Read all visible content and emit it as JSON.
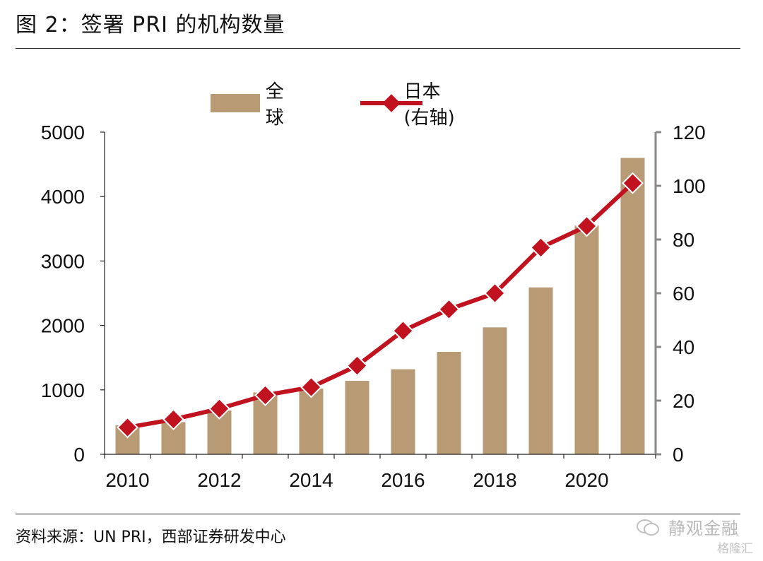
{
  "header": {
    "title": "图 2：签署 PRI 的机构数量"
  },
  "footer": {
    "source": "资料来源：UN PRI，西部证券研发中心"
  },
  "watermark": {
    "text": "静观金融",
    "logo_text": "格隆汇"
  },
  "chart_data": {
    "type": "bar",
    "x": [
      2010,
      2011,
      2012,
      2013,
      2014,
      2015,
      2016,
      2017,
      2018,
      2019,
      2020,
      2021
    ],
    "xticks": [
      "2010",
      "2012",
      "2014",
      "2016",
      "2018",
      "2020"
    ],
    "series": [
      {
        "name": "全球",
        "type": "bar",
        "axis": "left",
        "color": "#b89a74",
        "values": [
          450,
          500,
          680,
          960,
          1020,
          1140,
          1320,
          1590,
          1970,
          2590,
          3550,
          4600
        ]
      },
      {
        "name": "日本(右轴)",
        "type": "line",
        "axis": "right",
        "color": "#c1121f",
        "values": [
          10,
          13,
          17,
          22,
          25,
          33,
          46,
          54,
          60,
          77,
          85,
          101
        ]
      }
    ],
    "y_left": {
      "min": 0,
      "max": 5000,
      "ticks": [
        "0",
        "1000",
        "2000",
        "3000",
        "4000",
        "5000"
      ]
    },
    "y_right": {
      "min": 0,
      "max": 120,
      "ticks": [
        "0",
        "20",
        "40",
        "60",
        "80",
        "100",
        "120"
      ]
    },
    "legend": "top",
    "grid": false
  }
}
